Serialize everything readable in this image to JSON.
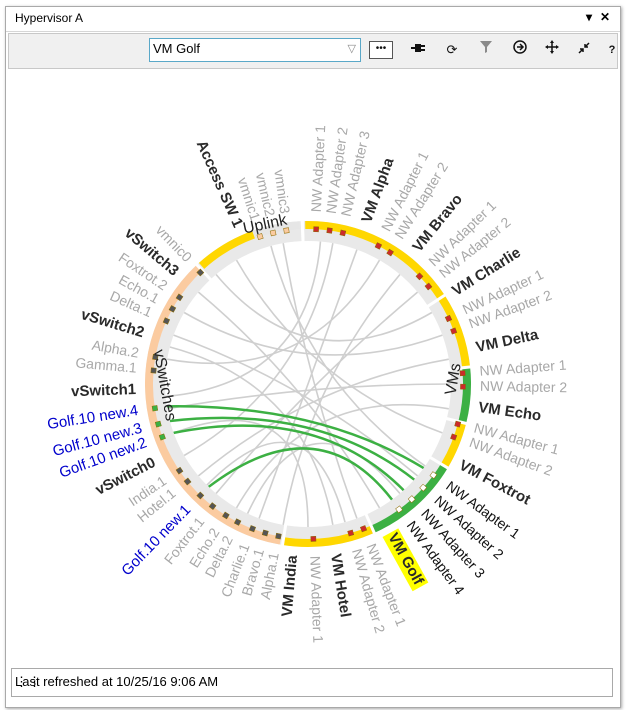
{
  "window": {
    "title": "Hypervisor A",
    "pin_icon": "pin-icon",
    "close_icon": "close-icon"
  },
  "toolbar": {
    "selected_vm": "VM Golf",
    "tools": [
      "chat-icon",
      "plug-icon",
      "refresh-icon",
      "filter-icon",
      "next-icon",
      "move-icon",
      "collapse-icon",
      "help-icon"
    ],
    "help_label": "?"
  },
  "diagram": {
    "groups": [
      "Uplink",
      "VMs",
      "vSwitches"
    ],
    "colors": {
      "vm": "#ffd700",
      "vm_selected": "#3cb043",
      "switch": "#fbcba0",
      "uplink": "#ffd700",
      "link": "#cfcfcf",
      "link_selected": "#3cb043",
      "label_active": "#2a2a2a",
      "label_dim": "#a8a8a8",
      "label_new": "#0000cc",
      "highlight": "#ffff00"
    },
    "uplink_labels": [
      {
        "text": "vmnic3",
        "angle": -98,
        "style": "dim"
      },
      {
        "text": "vmnic2",
        "angle": -103,
        "style": "dim"
      },
      {
        "text": "vmnic1",
        "angle": -108,
        "style": "dim"
      },
      {
        "text": "Access SW 1",
        "angle": -114,
        "style": "active"
      }
    ],
    "vm_labels": [
      {
        "text": "NW Adapter 1",
        "angle": -87,
        "style": "dim"
      },
      {
        "text": "NW Adapter 2",
        "angle": -82,
        "style": "dim"
      },
      {
        "text": "NW Adapter 3",
        "angle": -77,
        "style": "dim"
      },
      {
        "text": "VM Alpha",
        "angle": -70,
        "style": "active"
      },
      {
        "text": "NW Adapter 1",
        "angle": -63,
        "style": "dim"
      },
      {
        "text": "NW Adapter 2",
        "angle": -58,
        "style": "dim"
      },
      {
        "text": "VM Bravo",
        "angle": -51,
        "style": "active"
      },
      {
        "text": "NW Adapter 1",
        "angle": -44,
        "style": "dim"
      },
      {
        "text": "NW Adapter 2",
        "angle": -39,
        "style": "dim"
      },
      {
        "text": "VM Charlie",
        "angle": -32,
        "style": "active"
      },
      {
        "text": "NW Adapter 1",
        "angle": -25,
        "style": "dim"
      },
      {
        "text": "NW Adapter 2",
        "angle": -20,
        "style": "dim"
      },
      {
        "text": "VM Delta",
        "angle": -12,
        "style": "active"
      },
      {
        "text": "NW Adapter 1",
        "angle": -4,
        "style": "dim"
      },
      {
        "text": "NW Adapter 2",
        "angle": 1,
        "style": "dim"
      },
      {
        "text": "VM Echo",
        "angle": 8,
        "style": "active"
      },
      {
        "text": "NW Adapter 1",
        "angle": 15,
        "style": "dim"
      },
      {
        "text": "NW Adapter 2",
        "angle": 20,
        "style": "dim"
      },
      {
        "text": "VM Foxtrot",
        "angle": 28,
        "style": "active"
      },
      {
        "text": "NW Adapter 1",
        "angle": 36,
        "style": "sel"
      },
      {
        "text": "NW Adapter 2",
        "angle": 42,
        "style": "sel"
      },
      {
        "text": "NW Adapter 3",
        "angle": 48,
        "style": "sel"
      },
      {
        "text": "NW Adapter 4",
        "angle": 54,
        "style": "sel"
      },
      {
        "text": "VM Golf",
        "angle": 61,
        "style": "highlight"
      },
      {
        "text": "NW Adapter 1",
        "angle": 69,
        "style": "dim"
      },
      {
        "text": "NW Adapter 2",
        "angle": 74,
        "style": "dim"
      },
      {
        "text": "VM Hotel",
        "angle": 81,
        "style": "active"
      },
      {
        "text": "NW Adapter 1",
        "angle": 88,
        "style": "dim"
      },
      {
        "text": "VM India",
        "angle": 95,
        "style": "active"
      }
    ],
    "switch_labels": [
      {
        "text": "Alpha.1",
        "angle": 101,
        "style": "dim"
      },
      {
        "text": "Bravo.1",
        "angle": 106,
        "style": "dim"
      },
      {
        "text": "Charlie.1",
        "angle": 111,
        "style": "dim"
      },
      {
        "text": "Delta.2",
        "angle": 117,
        "style": "dim"
      },
      {
        "text": "Echo.2",
        "angle": 122,
        "style": "dim"
      },
      {
        "text": "Foxtrot.1",
        "angle": 128,
        "style": "dim"
      },
      {
        "text": "Golf.10 new.1",
        "angle": 134,
        "style": "new"
      },
      {
        "text": "Hotel.1",
        "angle": 141,
        "style": "dim"
      },
      {
        "text": "India.1",
        "angle": 146,
        "style": "dim"
      },
      {
        "text": "vSwitch0",
        "angle": 153,
        "style": "active"
      },
      {
        "text": "Golf.10 new.2",
        "angle": 160,
        "style": "new"
      },
      {
        "text": "Golf.10 new.3",
        "angle": 165,
        "style": "new"
      },
      {
        "text": "Golf.10 new.4",
        "angle": 171,
        "style": "new"
      },
      {
        "text": "vSwitch1",
        "angle": 178,
        "style": "active"
      },
      {
        "text": "Gamma.1",
        "angle": 185,
        "style": "dim"
      },
      {
        "text": "Alpha.2",
        "angle": 190,
        "style": "dim"
      },
      {
        "text": "vSwitch2",
        "angle": 197,
        "style": "active"
      },
      {
        "text": "Delta.1",
        "angle": 204,
        "style": "dim"
      },
      {
        "text": "Echo.1",
        "angle": 209,
        "style": "dim"
      },
      {
        "text": "Foxtrot.2",
        "angle": 214,
        "style": "dim"
      },
      {
        "text": "vSwitch3",
        "angle": 220,
        "style": "active"
      },
      {
        "text": "vmnic0",
        "angle": 226,
        "style": "dim"
      }
    ]
  },
  "footer": {
    "status": "Last refreshed at 10/25/16 9:06 AM"
  }
}
